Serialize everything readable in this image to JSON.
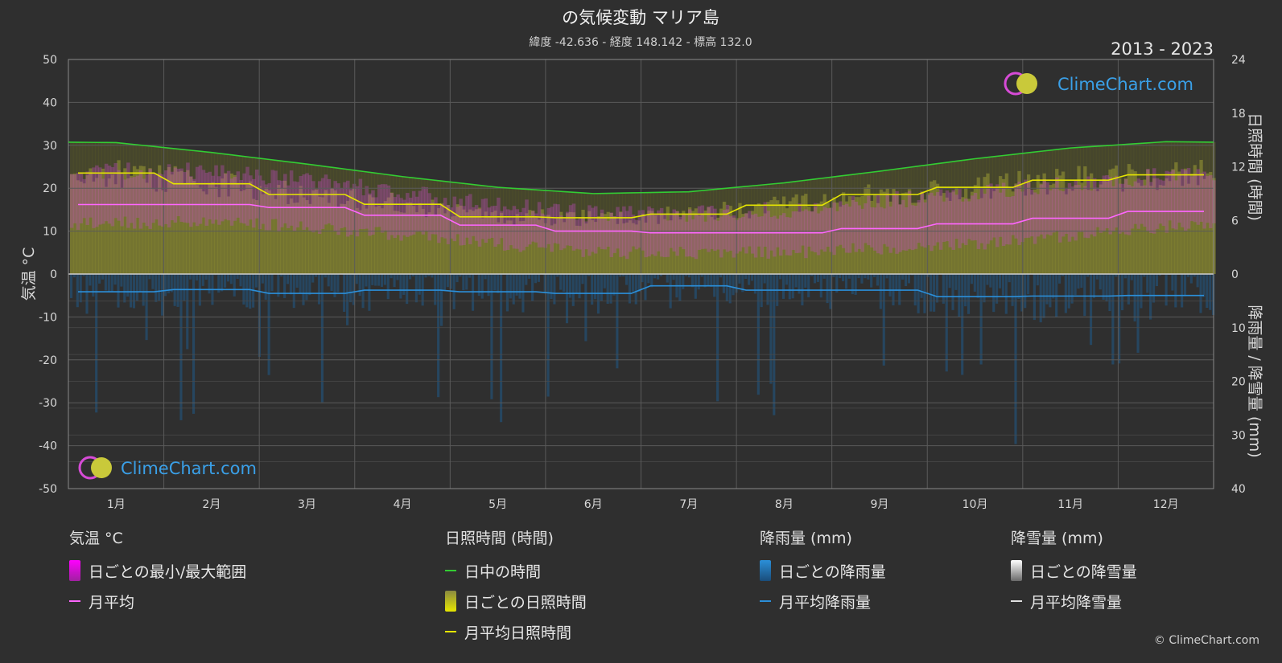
{
  "title": "の気候変動 マリア島",
  "subtitle": "緯度 -42.636 - 経度 148.142 - 標高 132.0",
  "year_range": "2013 - 2023",
  "watermark": "ClimeChart.com",
  "copyright": "© ClimeChart.com",
  "chart_data": {
    "type": "area",
    "categories": [
      "1月",
      "2月",
      "3月",
      "4月",
      "5月",
      "6月",
      "7月",
      "8月",
      "9月",
      "10月",
      "11月",
      "12月"
    ],
    "y_left": {
      "label": "気温 °C",
      "ticks": [
        50,
        40,
        30,
        20,
        10,
        0,
        -10,
        -20,
        -30,
        -40,
        -50
      ],
      "range": [
        -50,
        50
      ]
    },
    "y_right_top": {
      "label": "日照時間 (時間)",
      "ticks": [
        24,
        18,
        12,
        6,
        0
      ],
      "range": [
        0,
        24
      ]
    },
    "y_right_bottom": {
      "label": "降雨量 / 降雪量 (mm)",
      "ticks": [
        0,
        10,
        20,
        30,
        40
      ],
      "range": [
        0,
        40
      ]
    },
    "grid": true,
    "series": [
      {
        "name": "日中の時間",
        "color": "#33cc33",
        "values": [
          14.7,
          13.6,
          12.3,
          10.9,
          9.7,
          9.0,
          9.2,
          10.2,
          11.5,
          12.9,
          14.1,
          14.8
        ]
      },
      {
        "name": "月平均日照時間",
        "color": "#e6e600",
        "values": [
          11.3,
          10.1,
          8.9,
          7.8,
          6.4,
          6.3,
          6.7,
          7.7,
          8.9,
          9.7,
          10.5,
          11.1
        ]
      },
      {
        "name": "月平均",
        "color": "#ff66ff",
        "values": [
          16.2,
          16.2,
          15.5,
          13.7,
          11.4,
          10.0,
          9.6,
          9.6,
          10.6,
          11.7,
          13.0,
          14.6
        ]
      },
      {
        "name": "月平均降雨量",
        "color": "#2b8fd9",
        "values": [
          3.3,
          2.9,
          3.6,
          3.0,
          3.3,
          3.6,
          2.2,
          3.0,
          3.0,
          4.2,
          4.1,
          4.0
        ]
      },
      {
        "name": "月平均降雪量",
        "color": "#e0e0e0",
        "values": [
          0,
          0,
          0,
          0,
          0,
          0,
          0,
          0,
          0,
          0,
          0,
          0
        ]
      }
    ],
    "daily_range_band": {
      "name": "日ごとの最小/最大範囲",
      "min": [
        12,
        12,
        11,
        9,
        7,
        5,
        5,
        5,
        6,
        7,
        9,
        11
      ],
      "max": [
        24,
        24,
        22,
        19,
        16,
        14,
        14,
        15,
        17,
        19,
        21,
        23
      ]
    }
  },
  "legend": {
    "temperature": {
      "title": "気温 °C",
      "items": [
        {
          "label": "日ごとの最小/最大範囲",
          "kind": "box",
          "color": "#e040e0"
        },
        {
          "label": "月平均",
          "kind": "line",
          "color": "#ff66ff"
        }
      ]
    },
    "sunshine": {
      "title": "日照時間 (時間)",
      "items": [
        {
          "label": "日中の時間",
          "kind": "line",
          "color": "#33cc33"
        },
        {
          "label": "日ごとの日照時間",
          "kind": "box",
          "color": "#d4d43a"
        },
        {
          "label": "月平均日照時間",
          "kind": "line",
          "color": "#e6e600"
        }
      ]
    },
    "rain": {
      "title": "降雨量 (mm)",
      "items": [
        {
          "label": "日ごとの降雨量",
          "kind": "box",
          "color": "#2b8fd9"
        },
        {
          "label": "月平均降雨量",
          "kind": "line",
          "color": "#2b8fd9"
        }
      ]
    },
    "snow": {
      "title": "降雪量 (mm)",
      "items": [
        {
          "label": "日ごとの降雪量",
          "kind": "box",
          "color": "#d8d8d8"
        },
        {
          "label": "月平均降雪量",
          "kind": "line",
          "color": "#e0e0e0"
        }
      ]
    }
  }
}
